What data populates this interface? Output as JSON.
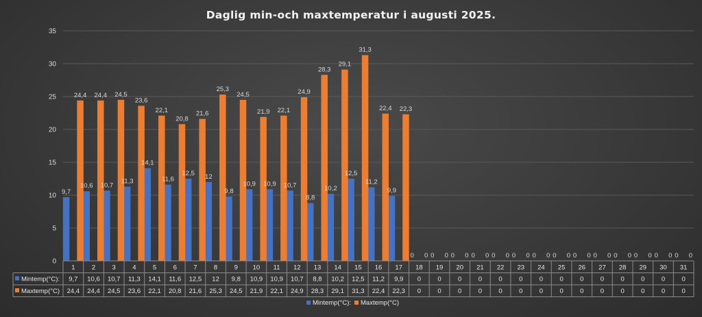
{
  "chart_data": {
    "type": "bar",
    "title": "Daglig min-och maxtemperatur i augusti 2025.",
    "xlabel": "",
    "ylabel": "",
    "ylim": [
      0,
      35
    ],
    "yticks": [
      0,
      5,
      10,
      15,
      20,
      25,
      30,
      35
    ],
    "grid": true,
    "legend": "bottom",
    "data_table": true,
    "categories": [
      "1",
      "2",
      "3",
      "4",
      "5",
      "6",
      "7",
      "8",
      "9",
      "10",
      "11",
      "12",
      "13",
      "14",
      "15",
      "16",
      "17",
      "18",
      "19",
      "20",
      "21",
      "22",
      "23",
      "24",
      "25",
      "26",
      "27",
      "28",
      "29",
      "30",
      "31"
    ],
    "series": [
      {
        "name": "Mintemp(°C):",
        "color": "#4472C4",
        "values": [
          9.7,
          10.6,
          10.7,
          11.3,
          14.1,
          11.6,
          12.5,
          12,
          9.8,
          10.9,
          10.9,
          10.7,
          8.8,
          10.2,
          12.5,
          11.2,
          9.9,
          0,
          0,
          0,
          0,
          0,
          0,
          0,
          0,
          0,
          0,
          0,
          0,
          0,
          0
        ],
        "labels": [
          "9,7",
          "10,6",
          "10,7",
          "11,3",
          "14,1",
          "11,6",
          "12,5",
          "12",
          "9,8",
          "10,9",
          "10,9",
          "10,7",
          "8,8",
          "10,2",
          "12,5",
          "11,2",
          "9,9",
          "0",
          "0",
          "0",
          "0",
          "0",
          "0",
          "0",
          "0",
          "0",
          "0",
          "0",
          "0",
          "0",
          "0"
        ]
      },
      {
        "name": "Maxtemp(°C)",
        "color": "#ED7D31",
        "values": [
          24.4,
          24.4,
          24.5,
          23.6,
          22.1,
          20.8,
          21.6,
          25.3,
          24.5,
          21.9,
          22.1,
          24.9,
          28.3,
          29.1,
          31.3,
          22.4,
          22.3,
          0,
          0,
          0,
          0,
          0,
          0,
          0,
          0,
          0,
          0,
          0,
          0,
          0,
          0
        ],
        "labels": [
          "24,4",
          "24,4",
          "24,5",
          "23,6",
          "22,1",
          "20,8",
          "21,6",
          "25,3",
          "24,5",
          "21,9",
          "22,1",
          "24,9",
          "28,3",
          "29,1",
          "31,3",
          "22,4",
          "22,3",
          "0",
          "0",
          "0",
          "0",
          "0",
          "0",
          "0",
          "0",
          "0",
          "0",
          "0",
          "0",
          "0",
          "0"
        ]
      }
    ],
    "table_row_labels": [
      "Mintemp(°C):",
      "Maxtemp(°C)"
    ]
  }
}
